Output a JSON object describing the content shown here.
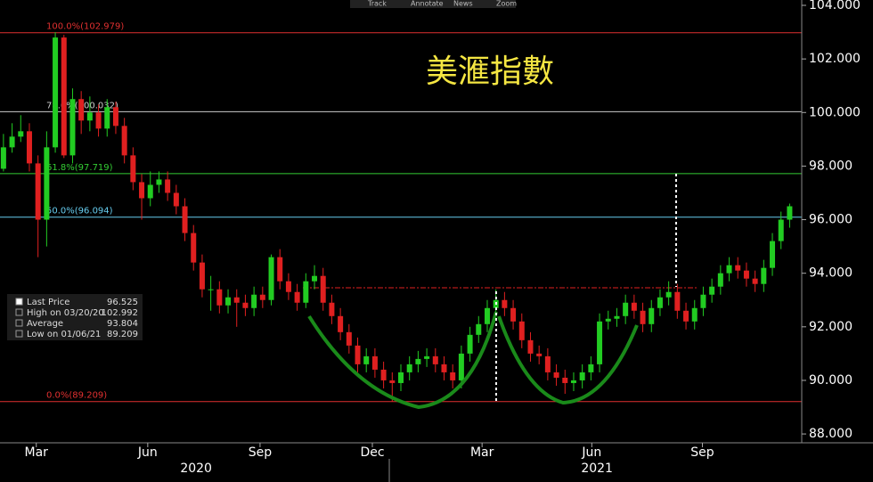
{
  "chart_data": {
    "type": "candlestick",
    "title": "美滙指數",
    "toolbar": [
      "Track",
      "Annotate",
      "News",
      "Zoom"
    ],
    "open": [
      97.9,
      98.7,
      99.1,
      99.3,
      98.1,
      96.0,
      98.7,
      102.8,
      98.4,
      100.5,
      99.7,
      100.0,
      99.4,
      100.2,
      99.5,
      98.4,
      97.4,
      96.8,
      97.3,
      97.5,
      97.0,
      96.5,
      95.5,
      94.4,
      93.4,
      93.4,
      92.8,
      93.1,
      92.9,
      92.7,
      93.2,
      93.0,
      94.6,
      93.7,
      93.3,
      92.9,
      93.7,
      93.9,
      92.9,
      92.4,
      91.8,
      91.3,
      90.6,
      90.9,
      90.4,
      90.0,
      89.9,
      90.3,
      90.6,
      90.8,
      90.9,
      90.6,
      90.3,
      90.0,
      91.0,
      91.7,
      92.1,
      92.7,
      93.0,
      92.7,
      92.2,
      91.5,
      91.0,
      90.9,
      90.3,
      90.1,
      89.9,
      90.0,
      90.3,
      90.6,
      92.2,
      92.3,
      92.4,
      92.9,
      92.6,
      92.1,
      92.7,
      93.1,
      93.3,
      92.6,
      92.2,
      92.7,
      93.2,
      93.5,
      94.0,
      94.3,
      94.1,
      93.8,
      93.6,
      94.2,
      95.2,
      96.0
    ],
    "high": [
      99.2,
      99.6,
      99.9,
      99.6,
      98.4,
      99.3,
      103.0,
      102.9,
      100.9,
      100.8,
      100.6,
      100.3,
      100.5,
      100.4,
      99.8,
      98.7,
      97.7,
      97.8,
      97.8,
      97.8,
      97.3,
      96.8,
      95.8,
      94.7,
      93.9,
      93.7,
      93.4,
      93.4,
      93.2,
      93.5,
      93.5,
      94.7,
      94.9,
      94.0,
      93.6,
      94.0,
      94.3,
      94.2,
      93.2,
      92.7,
      92.1,
      91.6,
      91.2,
      91.2,
      90.7,
      90.3,
      90.6,
      90.9,
      91.1,
      91.2,
      91.2,
      90.9,
      90.6,
      91.3,
      92.0,
      92.4,
      93.0,
      93.4,
      93.3,
      93.0,
      92.5,
      91.8,
      91.3,
      91.2,
      90.6,
      90.4,
      90.3,
      90.6,
      90.9,
      92.5,
      92.6,
      92.7,
      93.2,
      93.2,
      92.9,
      93.0,
      93.4,
      93.7,
      93.6,
      92.9,
      93.0,
      93.5,
      93.8,
      94.3,
      94.6,
      94.6,
      94.4,
      94.1,
      94.5,
      95.5,
      96.3,
      96.6
    ],
    "low": [
      97.8,
      98.5,
      98.9,
      97.8,
      94.6,
      95.0,
      98.5,
      98.3,
      98.1,
      99.2,
      99.3,
      99.1,
      99.1,
      99.2,
      98.1,
      97.1,
      96.0,
      96.5,
      97.0,
      96.7,
      96.2,
      95.2,
      94.1,
      93.1,
      92.6,
      92.5,
      92.5,
      92.0,
      92.4,
      92.4,
      92.7,
      92.8,
      93.4,
      93.0,
      92.6,
      92.7,
      93.4,
      92.6,
      92.1,
      91.5,
      91.0,
      90.3,
      90.3,
      90.1,
      89.7,
      89.2,
      89.6,
      90.0,
      90.3,
      90.5,
      90.3,
      90.0,
      89.7,
      89.7,
      90.7,
      91.4,
      91.8,
      92.4,
      92.4,
      91.9,
      91.2,
      90.7,
      90.6,
      90.0,
      89.8,
      89.5,
      89.6,
      89.7,
      90.0,
      90.3,
      91.9,
      92.0,
      92.1,
      92.3,
      91.8,
      91.8,
      92.4,
      92.8,
      92.3,
      91.9,
      91.9,
      92.4,
      92.9,
      93.2,
      93.7,
      93.8,
      93.5,
      93.3,
      93.3,
      93.9,
      94.9,
      95.7
    ],
    "close": [
      98.7,
      99.1,
      99.3,
      98.1,
      96.0,
      98.7,
      102.8,
      98.4,
      100.5,
      99.7,
      100.0,
      99.4,
      100.2,
      99.5,
      98.4,
      97.4,
      96.8,
      97.3,
      97.5,
      97.0,
      96.5,
      95.5,
      94.4,
      93.4,
      93.4,
      92.8,
      93.1,
      92.9,
      92.7,
      93.2,
      93.0,
      94.6,
      93.7,
      93.3,
      92.9,
      93.7,
      93.9,
      92.9,
      92.4,
      91.8,
      91.3,
      90.6,
      90.9,
      90.4,
      90.0,
      89.9,
      90.3,
      90.6,
      90.8,
      90.9,
      90.6,
      90.3,
      90.0,
      91.0,
      91.7,
      92.1,
      92.7,
      93.0,
      92.7,
      92.2,
      91.5,
      91.0,
      90.9,
      90.3,
      90.1,
      89.9,
      90.0,
      90.3,
      90.6,
      92.2,
      92.3,
      92.4,
      92.9,
      92.6,
      92.1,
      92.7,
      93.1,
      93.3,
      92.6,
      92.2,
      92.7,
      93.2,
      93.5,
      94.0,
      94.3,
      94.1,
      93.8,
      93.6,
      94.2,
      95.2,
      96.0,
      96.5
    ],
    "up_color": "#22cc22",
    "down_color": "#e02020",
    "xlim": [
      -0.4,
      92.4
    ],
    "xticks": [
      {
        "value": 3.8,
        "label": "Mar"
      },
      {
        "value": 16.7,
        "label": "Jun"
      },
      {
        "value": 29.7,
        "label": "Sep"
      },
      {
        "value": 42.7,
        "label": "Dec"
      },
      {
        "value": 55.4,
        "label": "Mar"
      },
      {
        "value": 68.1,
        "label": "Jun"
      },
      {
        "value": 80.9,
        "label": "Sep"
      }
    ],
    "years": [
      {
        "value": 22.3,
        "label": "2020"
      },
      {
        "value": 68.7,
        "label": "2021"
      }
    ],
    "ylim": [
      87.67,
      104.2
    ],
    "yticks": [
      {
        "value": 104,
        "label": "104.000"
      },
      {
        "value": 102,
        "label": "102.000"
      },
      {
        "value": 100,
        "label": "100.000"
      },
      {
        "value": 98,
        "label": "98.000"
      },
      {
        "value": 96,
        "label": "96.000"
      },
      {
        "value": 94,
        "label": "94.000"
      },
      {
        "value": 92,
        "label": "92.000"
      },
      {
        "value": 90,
        "label": "90.000"
      },
      {
        "value": 88,
        "label": "88.000"
      }
    ],
    "fib_levels": [
      {
        "label": "100.0%(102.979)",
        "value": 102.979,
        "color": "#e03030"
      },
      {
        "label": "78.6%(100.032)",
        "value": 100.032,
        "color": "#cccccc"
      },
      {
        "label": "61.8%(97.719)",
        "value": 97.719,
        "color": "#33cc33"
      },
      {
        "label": "50.0%(96.094)",
        "value": 96.094,
        "color": "#66ccee"
      },
      {
        "label": "0.0%(89.209)",
        "value": 89.209,
        "color": "#e03030"
      }
    ],
    "legend": [
      {
        "label": "Last Price",
        "value": 96.525
      },
      {
        "label": "High on 03/20/20",
        "value": 102.992
      },
      {
        "label": "Average",
        "value": 93.804
      },
      {
        "label": "Low on 01/06/21",
        "value": 89.209
      }
    ]
  }
}
